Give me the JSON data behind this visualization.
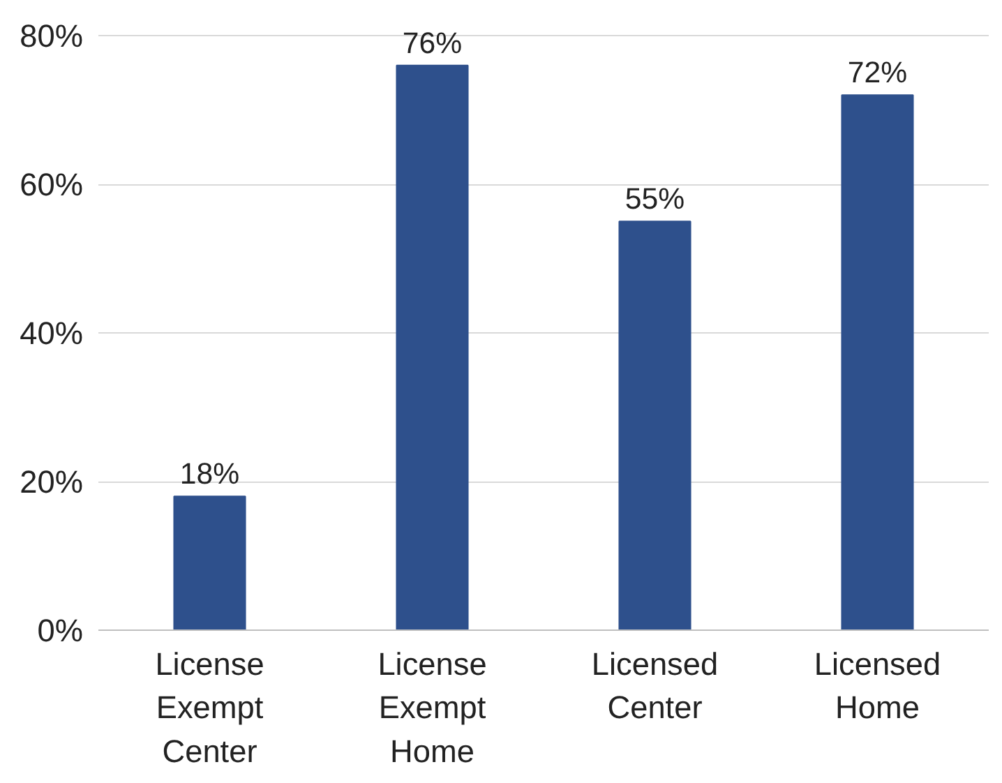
{
  "chart_data": {
    "type": "bar",
    "categories": [
      "License Exempt Center",
      "License Exempt Home",
      "Licensed Center",
      "Licensed Home"
    ],
    "values": [
      18,
      76,
      55,
      72
    ],
    "value_labels": [
      "18%",
      "76%",
      "55%",
      "72%"
    ],
    "color": "#2e508c",
    "ylim": [
      0,
      80
    ],
    "yticks": [
      {
        "value": 0,
        "label": "0%"
      },
      {
        "value": 20,
        "label": "20%"
      },
      {
        "value": 40,
        "label": "40%"
      },
      {
        "value": 60,
        "label": "60%"
      },
      {
        "value": 80,
        "label": "80%"
      }
    ],
    "grid": "y"
  }
}
